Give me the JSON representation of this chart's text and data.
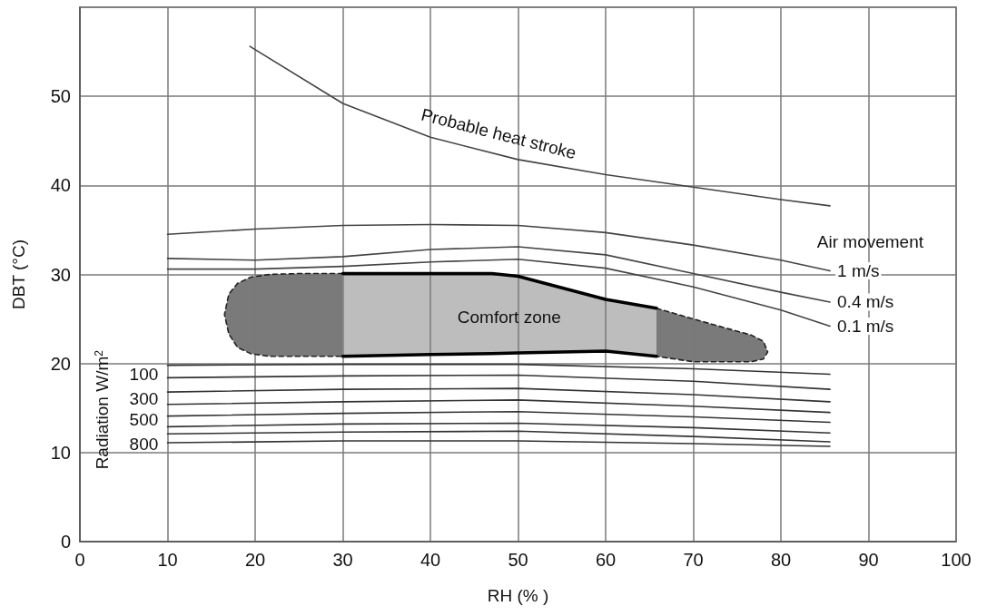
{
  "chart_data": {
    "type": "line",
    "xlabel": "RH (% )",
    "ylabel": "DBT (°C)",
    "xlim": [
      0,
      100
    ],
    "xticks": [
      0,
      10,
      20,
      30,
      40,
      50,
      60,
      70,
      80,
      90,
      100
    ],
    "ylim": [
      0,
      60
    ],
    "yticks": [
      0,
      10,
      20,
      30,
      40,
      50
    ],
    "grid": true,
    "legend": false,
    "marker": "none",
    "line_style": "solid",
    "annotations": [
      "Probable heat stroke",
      "Air movement",
      "Comfort zone",
      "Radiation W/m$^{2}$",
      "100",
      "300",
      "500",
      "800"
    ],
    "series": [
      {
        "color": "#222222",
        "line_style": "dashed",
        "x": [
          30,
          25,
          21.7,
          19.5,
          18,
          17,
          16.5,
          17,
          18,
          19.5,
          21.7,
          25,
          30
        ],
        "values": [
          30.1,
          30.1,
          30.0,
          29.7,
          29,
          27.8,
          25.5,
          23.3,
          21.8,
          21.1,
          20.8,
          20.8,
          20.8
        ]
      },
      {
        "color": "#222222",
        "line_style": "dashed",
        "x": [
          65.8,
          70,
          74,
          76.6,
          78,
          78.5,
          78,
          76.6,
          74,
          70,
          65.8
        ],
        "values": [
          26.2,
          25.0,
          23.9,
          23.2,
          22.5,
          21.3,
          20.5,
          20.2,
          20.2,
          20.2,
          20.8
        ]
      },
      {
        "color": "#000000",
        "x": [
          30,
          40,
          47,
          50,
          60,
          65.8
        ],
        "values": [
          30.1,
          30.1,
          30.1,
          29.8,
          27.2,
          26.2
        ]
      },
      {
        "color": "#000000",
        "x": [
          30,
          40,
          47,
          50,
          60,
          65.8
        ],
        "values": [
          20.8,
          21.0,
          21.1,
          21.2,
          21.4,
          20.8
        ]
      },
      {
        "color": "#444444",
        "x": [
          19.4,
          30,
          40,
          50,
          60,
          70,
          80,
          85.6
        ],
        "values": [
          55.6,
          49.2,
          45.4,
          42.9,
          41.2,
          39.8,
          38.4,
          37.7
        ]
      },
      {
        "name": "1 m/s",
        "color": "#444444",
        "x": [
          10,
          20,
          30,
          40,
          50,
          60,
          70,
          80,
          85.6
        ],
        "values": [
          34.5,
          35.1,
          35.5,
          35.6,
          35.5,
          34.7,
          33.3,
          31.6,
          30.4
        ]
      },
      {
        "name": "0.4 m/s",
        "color": "#444444",
        "x": [
          10,
          20,
          30,
          40,
          50,
          60,
          70,
          80,
          85.6
        ],
        "values": [
          31.8,
          31.6,
          32.0,
          32.8,
          33.1,
          32.2,
          30.1,
          28.0,
          26.9
        ]
      },
      {
        "name": "0.1 m/s",
        "color": "#444444",
        "x": [
          10,
          20,
          30,
          40,
          50,
          60,
          70,
          80,
          85.6
        ],
        "values": [
          30.6,
          30.6,
          30.9,
          31.4,
          31.7,
          30.7,
          28.6,
          26.0,
          24.2
        ]
      },
      {
        "color": "#333333",
        "x": [
          10,
          30,
          50,
          70,
          85.6
        ],
        "values": [
          19.8,
          19.9,
          19.9,
          19.4,
          18.8
        ]
      },
      {
        "color": "#333333",
        "x": [
          10,
          30,
          50,
          70,
          85.6
        ],
        "values": [
          18.4,
          18.6,
          18.7,
          18.0,
          17.1
        ]
      },
      {
        "color": "#333333",
        "x": [
          10,
          30,
          50,
          70,
          85.6
        ],
        "values": [
          16.8,
          17.1,
          17.2,
          16.5,
          15.7
        ]
      },
      {
        "color": "#333333",
        "x": [
          10,
          30,
          50,
          70,
          85.6
        ],
        "values": [
          15.4,
          15.7,
          15.9,
          15.2,
          14.5
        ]
      },
      {
        "color": "#333333",
        "x": [
          10,
          30,
          50,
          70,
          85.6
        ],
        "values": [
          14.1,
          14.4,
          14.6,
          14.0,
          13.4
        ]
      },
      {
        "color": "#333333",
        "x": [
          10,
          30,
          50,
          70,
          85.6
        ],
        "values": [
          12.9,
          13.2,
          13.3,
          12.8,
          12.2
        ]
      },
      {
        "color": "#333333",
        "x": [
          10,
          30,
          50,
          70,
          85.6
        ],
        "values": [
          12.1,
          12.3,
          12.4,
          11.8,
          11.2
        ]
      },
      {
        "color": "#333333",
        "x": [
          10,
          30,
          50,
          70,
          85.6
        ],
        "values": [
          11.1,
          11.3,
          11.3,
          11.0,
          10.7
        ]
      }
    ]
  }
}
